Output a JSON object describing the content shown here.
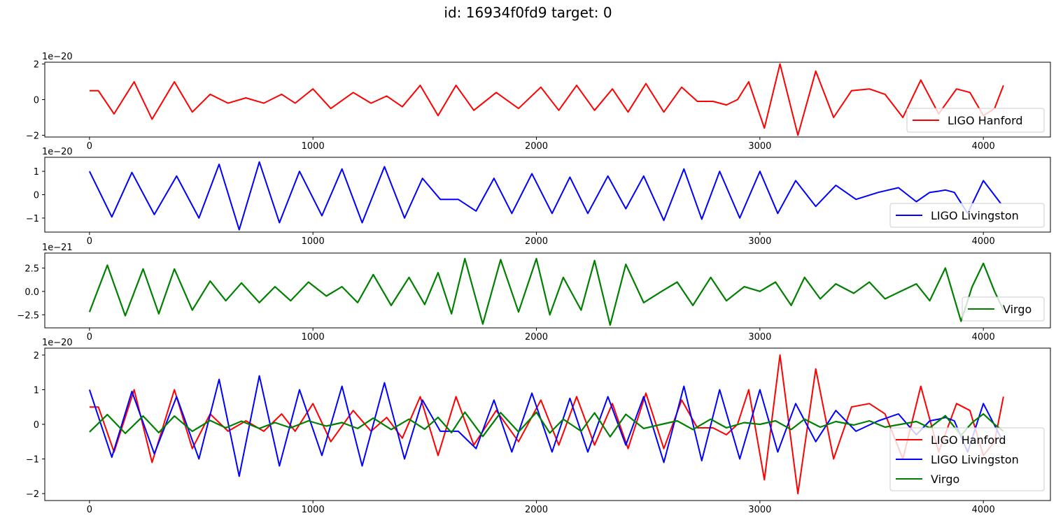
{
  "figure": {
    "title": "id: 16934f0fd9 target: 0"
  },
  "colors": {
    "LIGO Hanford": "#ff0000",
    "LIGO Livingston": "#0000ff",
    "Virgo": "#008000"
  },
  "chart_data": [
    {
      "type": "line",
      "title": "",
      "xlabel": "",
      "ylabel": "",
      "scale_label": "1e−20",
      "xlim": [
        -200,
        4300
      ],
      "ylim": [
        -2.1,
        2.1
      ],
      "xticks": [
        0,
        1000,
        2000,
        3000,
        4000
      ],
      "yticks": [
        -2,
        0,
        2
      ],
      "ytick_labels": [
        "−2",
        "0",
        "2"
      ],
      "legend": [
        "LIGO Hanford"
      ],
      "legend_position": "lower-right",
      "series": [
        {
          "name": "LIGO Hanford",
          "color": "#ff0000",
          "x": [
            0,
            40,
            110,
            200,
            280,
            380,
            460,
            540,
            620,
            700,
            780,
            860,
            920,
            1000,
            1080,
            1180,
            1260,
            1330,
            1400,
            1480,
            1560,
            1640,
            1720,
            1820,
            1920,
            2020,
            2100,
            2180,
            2260,
            2340,
            2410,
            2490,
            2570,
            2650,
            2720,
            2790,
            2850,
            2900,
            2950,
            3020,
            3090,
            3170,
            3250,
            3330,
            3410,
            3490,
            3560,
            3640,
            3720,
            3800,
            3880,
            3940,
            4000,
            4050,
            4090
          ],
          "y": [
            0.5,
            0.5,
            -0.8,
            1.0,
            -1.1,
            1.0,
            -0.7,
            0.3,
            -0.2,
            0.1,
            -0.2,
            0.3,
            -0.2,
            0.6,
            -0.5,
            0.4,
            -0.2,
            0.2,
            -0.4,
            0.8,
            -0.9,
            0.8,
            -0.6,
            0.4,
            -0.5,
            0.7,
            -0.6,
            0.8,
            -0.6,
            0.6,
            -0.7,
            0.9,
            -0.7,
            0.7,
            -0.1,
            -0.1,
            -0.3,
            0.0,
            1.0,
            -1.6,
            2.0,
            -2.0,
            1.6,
            -1.0,
            0.5,
            0.6,
            0.3,
            -1.0,
            1.1,
            -0.8,
            0.6,
            0.4,
            -0.9,
            -0.5,
            0.8
          ]
        }
      ]
    },
    {
      "type": "line",
      "title": "",
      "xlabel": "",
      "ylabel": "",
      "scale_label": "1e−20",
      "xlim": [
        -200,
        4300
      ],
      "ylim": [
        -1.6,
        1.6
      ],
      "xticks": [
        0,
        1000,
        2000,
        3000,
        4000
      ],
      "yticks": [
        -1,
        0,
        1
      ],
      "ytick_labels": [
        "−1",
        "0",
        "1"
      ],
      "legend": [
        "LIGO Livingston"
      ],
      "legend_position": "lower-right",
      "series": [
        {
          "name": "LIGO Livingston",
          "color": "#0000ff",
          "x": [
            0,
            100,
            190,
            290,
            390,
            490,
            580,
            670,
            760,
            850,
            940,
            1040,
            1130,
            1220,
            1320,
            1410,
            1490,
            1570,
            1650,
            1730,
            1810,
            1890,
            1980,
            2070,
            2150,
            2230,
            2320,
            2400,
            2480,
            2570,
            2660,
            2740,
            2820,
            2910,
            3000,
            3080,
            3160,
            3250,
            3340,
            3430,
            3530,
            3620,
            3700,
            3760,
            3800,
            3830,
            3870,
            3930,
            4000,
            4080
          ],
          "y": [
            1.0,
            -0.95,
            0.95,
            -0.85,
            0.8,
            -1.0,
            1.3,
            -1.5,
            1.4,
            -1.2,
            1.0,
            -0.9,
            1.1,
            -1.2,
            1.2,
            -1.0,
            0.7,
            -0.2,
            -0.2,
            -0.7,
            0.7,
            -0.8,
            0.9,
            -0.8,
            0.75,
            -0.8,
            0.8,
            -0.6,
            0.8,
            -1.1,
            1.1,
            -1.05,
            1.0,
            -1.0,
            1.0,
            -0.8,
            0.6,
            -0.5,
            0.4,
            -0.2,
            0.1,
            0.3,
            -0.3,
            0.1,
            0.15,
            0.2,
            0.1,
            -0.8,
            0.6,
            -0.4
          ]
        }
      ]
    },
    {
      "type": "line",
      "title": "",
      "xlabel": "",
      "ylabel": "",
      "scale_label": "1e−21",
      "xlim": [
        -200,
        4300
      ],
      "ylim": [
        -3.9,
        4.1
      ],
      "xticks": [
        0,
        1000,
        2000,
        3000,
        4000
      ],
      "yticks": [
        -2.5,
        0.0,
        2.5
      ],
      "ytick_labels": [
        "−2.5",
        "0.0",
        "2.5"
      ],
      "legend": [
        "Virgo"
      ],
      "legend_position": "lower-right",
      "series": [
        {
          "name": "Virgo",
          "color": "#008000",
          "x": [
            0,
            80,
            160,
            240,
            310,
            380,
            460,
            540,
            610,
            680,
            760,
            830,
            900,
            980,
            1060,
            1130,
            1200,
            1270,
            1350,
            1430,
            1500,
            1560,
            1620,
            1680,
            1760,
            1840,
            1920,
            2000,
            2060,
            2120,
            2200,
            2260,
            2330,
            2400,
            2480,
            2560,
            2630,
            2700,
            2780,
            2850,
            2930,
            3000,
            3070,
            3140,
            3200,
            3270,
            3340,
            3420,
            3490,
            3560,
            3630,
            3700,
            3760,
            3830,
            3900,
            3950,
            4000,
            4050,
            4090
          ],
          "y": [
            -2.2,
            2.8,
            -2.6,
            2.4,
            -2.4,
            2.4,
            -2.0,
            1.1,
            -1.0,
            0.9,
            -1.2,
            0.5,
            -1.0,
            1.0,
            -0.5,
            0.5,
            -1.2,
            1.8,
            -1.5,
            1.5,
            -1.4,
            2.0,
            -2.4,
            3.5,
            -3.5,
            3.4,
            -2.2,
            3.5,
            -2.5,
            1.5,
            -2.0,
            3.3,
            -3.6,
            2.9,
            -1.2,
            0.0,
            1.0,
            -1.5,
            1.5,
            -1.0,
            0.5,
            0.0,
            1.0,
            -1.5,
            1.5,
            -0.8,
            0.8,
            -0.2,
            1.0,
            -0.8,
            0.0,
            0.8,
            -1.0,
            2.5,
            -3.2,
            0.5,
            3.0,
            0.0,
            -2.0
          ]
        }
      ]
    },
    {
      "type": "line",
      "title": "",
      "xlabel": "",
      "ylabel": "",
      "scale_label": "1e−20",
      "xlim": [
        -200,
        4300
      ],
      "ylim": [
        -2.2,
        2.2
      ],
      "xticks": [
        0,
        1000,
        2000,
        3000,
        4000
      ],
      "yticks": [
        -2,
        -1,
        0,
        1,
        2
      ],
      "ytick_labels": [
        "−2",
        "−1",
        "0",
        "1",
        "2"
      ],
      "legend": [
        "LIGO Hanford",
        "LIGO Livingston",
        "Virgo"
      ],
      "legend_position": "lower-right",
      "series": [
        {
          "name": "LIGO Hanford",
          "color": "#ff0000",
          "x": [
            0,
            40,
            110,
            200,
            280,
            380,
            460,
            540,
            620,
            700,
            780,
            860,
            920,
            1000,
            1080,
            1180,
            1260,
            1330,
            1400,
            1480,
            1560,
            1640,
            1720,
            1820,
            1920,
            2020,
            2100,
            2180,
            2260,
            2340,
            2410,
            2490,
            2570,
            2650,
            2720,
            2790,
            2850,
            2900,
            2950,
            3020,
            3090,
            3170,
            3250,
            3330,
            3410,
            3490,
            3560,
            3640,
            3720,
            3800,
            3880,
            3940,
            4000,
            4050,
            4090
          ],
          "y": [
            0.5,
            0.5,
            -0.8,
            1.0,
            -1.1,
            1.0,
            -0.7,
            0.3,
            -0.2,
            0.1,
            -0.2,
            0.3,
            -0.2,
            0.6,
            -0.5,
            0.4,
            -0.2,
            0.2,
            -0.4,
            0.8,
            -0.9,
            0.8,
            -0.6,
            0.4,
            -0.5,
            0.7,
            -0.6,
            0.8,
            -0.6,
            0.6,
            -0.7,
            0.9,
            -0.7,
            0.7,
            -0.1,
            -0.1,
            -0.3,
            0.0,
            1.0,
            -1.6,
            2.0,
            -2.0,
            1.6,
            -1.0,
            0.5,
            0.6,
            0.3,
            -1.0,
            1.1,
            -0.8,
            0.6,
            0.4,
            -0.9,
            -0.5,
            0.8
          ]
        },
        {
          "name": "LIGO Livingston",
          "color": "#0000ff",
          "x": [
            0,
            100,
            190,
            290,
            390,
            490,
            580,
            670,
            760,
            850,
            940,
            1040,
            1130,
            1220,
            1320,
            1410,
            1490,
            1570,
            1650,
            1730,
            1810,
            1890,
            1980,
            2070,
            2150,
            2230,
            2320,
            2400,
            2480,
            2570,
            2660,
            2740,
            2820,
            2910,
            3000,
            3080,
            3160,
            3250,
            3340,
            3430,
            3530,
            3620,
            3700,
            3760,
            3800,
            3830,
            3870,
            3930,
            4000,
            4080
          ],
          "y": [
            1.0,
            -0.95,
            0.95,
            -0.85,
            0.8,
            -1.0,
            1.3,
            -1.5,
            1.4,
            -1.2,
            1.0,
            -0.9,
            1.1,
            -1.2,
            1.2,
            -1.0,
            0.7,
            -0.2,
            -0.2,
            -0.7,
            0.7,
            -0.8,
            0.9,
            -0.8,
            0.75,
            -0.8,
            0.8,
            -0.6,
            0.8,
            -1.1,
            1.1,
            -1.05,
            1.0,
            -1.0,
            1.0,
            -0.8,
            0.6,
            -0.5,
            0.4,
            -0.2,
            0.1,
            0.3,
            -0.3,
            0.1,
            0.15,
            0.2,
            0.1,
            -0.8,
            0.6,
            -0.4
          ]
        },
        {
          "name": "Virgo",
          "color": "#008000",
          "x": [
            0,
            80,
            160,
            240,
            310,
            380,
            460,
            540,
            610,
            680,
            760,
            830,
            900,
            980,
            1060,
            1130,
            1200,
            1270,
            1350,
            1430,
            1500,
            1560,
            1620,
            1680,
            1760,
            1840,
            1920,
            2000,
            2060,
            2120,
            2200,
            2260,
            2330,
            2400,
            2480,
            2560,
            2630,
            2700,
            2780,
            2850,
            2930,
            3000,
            3070,
            3140,
            3200,
            3270,
            3340,
            3420,
            3490,
            3560,
            3630,
            3700,
            3760,
            3830,
            3900,
            3950,
            4000,
            4050,
            4090
          ],
          "y": [
            -0.22,
            0.28,
            -0.26,
            0.24,
            -0.24,
            0.24,
            -0.2,
            0.11,
            -0.1,
            0.09,
            -0.12,
            0.05,
            -0.1,
            0.1,
            -0.05,
            0.05,
            -0.12,
            0.18,
            -0.15,
            0.15,
            -0.14,
            0.2,
            -0.24,
            0.35,
            -0.35,
            0.34,
            -0.22,
            0.35,
            -0.25,
            0.15,
            -0.2,
            0.33,
            -0.36,
            0.29,
            -0.12,
            0.0,
            0.1,
            -0.15,
            0.15,
            -0.1,
            0.05,
            0.0,
            0.1,
            -0.15,
            0.15,
            -0.08,
            0.08,
            -0.02,
            0.1,
            -0.08,
            0.0,
            0.08,
            -0.1,
            0.25,
            -0.32,
            0.05,
            0.3,
            0.0,
            -0.2
          ]
        }
      ]
    }
  ]
}
